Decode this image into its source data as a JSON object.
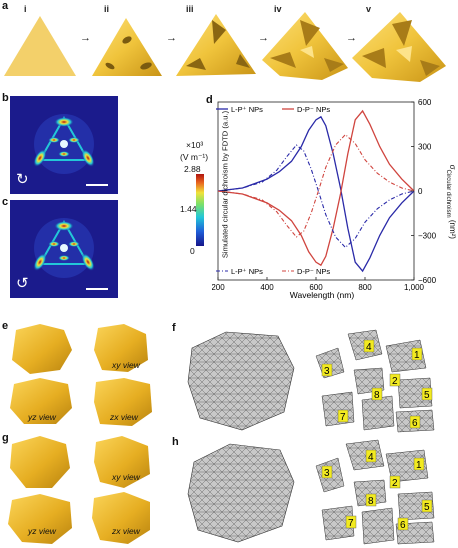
{
  "panels": {
    "a": "a",
    "b": "b",
    "c": "c",
    "d": "d",
    "e": "e",
    "f": "f",
    "g": "g",
    "h": "h"
  },
  "stages": [
    "i",
    "ii",
    "iii",
    "iv",
    "v"
  ],
  "colorbar": {
    "unit_line1": "×10³",
    "unit_line2": "(V m⁻¹)",
    "max": "2.88",
    "mid": "1.44",
    "min": "0"
  },
  "views": {
    "e": [
      "xy view",
      "yz view",
      "zx view"
    ],
    "g": [
      "xy view",
      "yz view",
      "zx view"
    ]
  },
  "mesh_numbers": [
    "1",
    "2",
    "3",
    "4",
    "5",
    "6",
    "7",
    "8"
  ],
  "colors": {
    "gold": "#f0c43c",
    "gold_dark": "#c99416",
    "map_bg": "#1b1b8c",
    "blue_series": "#2a2aa8",
    "red_series": "#d0453f"
  },
  "chart_data": {
    "type": "line",
    "xlabel": "Wavelength (nm)",
    "ylabel_left": "Simulated circular dichroism by FDTD (a.u.)",
    "ylabel_right": "σ",
    "ylabel_right_sub": "Circular dichroism",
    "ylabel_right_unit": "(nm²)",
    "xlim": [
      200,
      1000
    ],
    "ylim_right": [
      -600,
      600
    ],
    "x_ticks": [
      "200",
      "400",
      "600",
      "800",
      "1,000"
    ],
    "y_ticks_right": [
      "600",
      "300",
      "0",
      "−300",
      "−600"
    ],
    "legend_top": [
      "L-P⁺ NPs",
      "D-P⁻ NPs"
    ],
    "legend_bottom": [
      "L-P⁺ NPs",
      "D-P⁻ NPs"
    ],
    "grid": false,
    "series": [
      {
        "name": "L-P⁺ NPs",
        "style": "solid",
        "color": "#2a2aa8",
        "x": [
          200,
          300,
          400,
          450,
          500,
          540,
          570,
          600,
          620,
          640,
          670,
          700,
          730,
          760,
          790,
          820,
          860,
          900,
          950,
          1000
        ],
        "y": [
          0,
          20,
          80,
          130,
          200,
          300,
          410,
          480,
          500,
          440,
          250,
          20,
          -250,
          -480,
          -540,
          -450,
          -300,
          -180,
          -80,
          0
        ]
      },
      {
        "name": "D-P⁻ NPs",
        "style": "solid",
        "color": "#d0453f",
        "x": [
          200,
          300,
          400,
          450,
          500,
          540,
          570,
          600,
          620,
          640,
          670,
          700,
          730,
          760,
          790,
          820,
          860,
          900,
          950,
          1000
        ],
        "y": [
          0,
          -20,
          -80,
          -130,
          -200,
          -300,
          -410,
          -480,
          -500,
          -440,
          -250,
          -20,
          250,
          480,
          540,
          450,
          300,
          180,
          80,
          0
        ]
      },
      {
        "name": "L-P⁺ NPs",
        "style": "dashdot",
        "color": "#2a2aa8",
        "x": [
          200,
          300,
          380,
          440,
          480,
          520,
          550,
          580,
          610,
          640,
          680,
          720,
          760,
          800,
          850,
          900,
          950,
          1000
        ],
        "y": [
          0,
          20,
          60,
          140,
          230,
          310,
          270,
          150,
          0,
          -160,
          -310,
          -380,
          -320,
          -210,
          -120,
          -60,
          -20,
          0
        ]
      },
      {
        "name": "D-P⁻ NPs",
        "style": "dashdot",
        "color": "#d0453f",
        "x": [
          200,
          300,
          380,
          440,
          480,
          520,
          550,
          580,
          610,
          640,
          680,
          720,
          760,
          800,
          850,
          900,
          950,
          1000
        ],
        "y": [
          0,
          -20,
          -60,
          -140,
          -230,
          -310,
          -270,
          -150,
          0,
          160,
          310,
          380,
          320,
          210,
          120,
          60,
          20,
          0
        ]
      }
    ]
  }
}
